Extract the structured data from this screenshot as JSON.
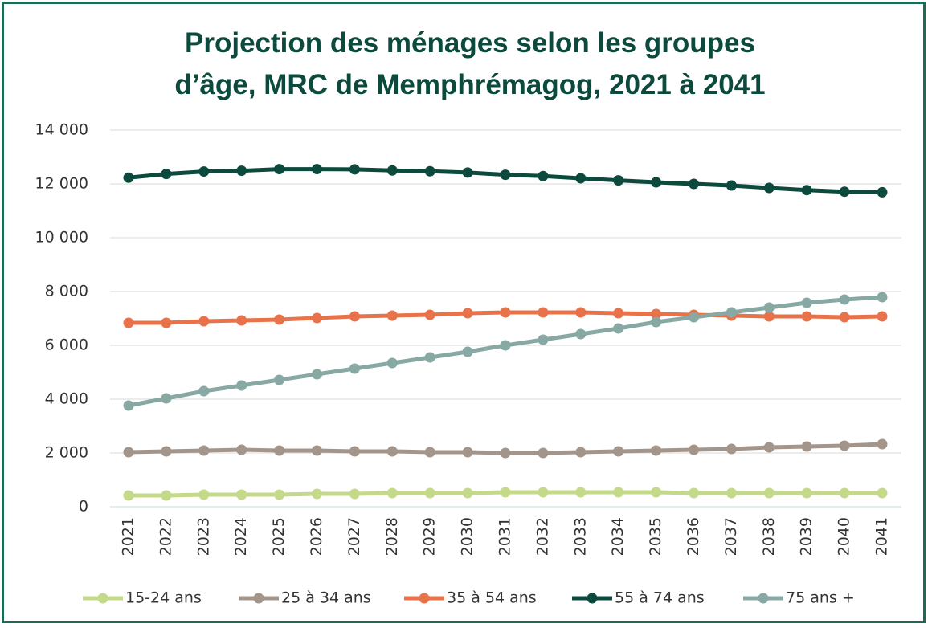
{
  "chart_data": {
    "type": "line",
    "title": "Projection des ménages selon les groupes d’âge, MRC de Memphrémagog, 2021 à 2041",
    "categories": [
      "2021",
      "2022",
      "2023",
      "2024",
      "2025",
      "2026",
      "2027",
      "2028",
      "2029",
      "2030",
      "2031",
      "2032",
      "2033",
      "2034",
      "2035",
      "2036",
      "2037",
      "2038",
      "2039",
      "2040",
      "2041"
    ],
    "series": [
      {
        "name": "15-24 ans",
        "color": "#c5d98a",
        "values": [
          418,
          418,
          448,
          448,
          448,
          478,
          478,
          507,
          507,
          507,
          537,
          537,
          537,
          537,
          537,
          507,
          507,
          507,
          507,
          507,
          507
        ]
      },
      {
        "name": "25 à 34 ans",
        "color": "#a4958a",
        "values": [
          2030,
          2060,
          2090,
          2119,
          2090,
          2090,
          2060,
          2060,
          2030,
          2030,
          2000,
          2000,
          2030,
          2060,
          2090,
          2119,
          2149,
          2209,
          2239,
          2269,
          2328
        ]
      },
      {
        "name": "35 à 54 ans",
        "color": "#e8734a",
        "values": [
          6836,
          6836,
          6896,
          6925,
          6955,
          7015,
          7075,
          7105,
          7134,
          7194,
          7224,
          7224,
          7224,
          7194,
          7164,
          7134,
          7105,
          7075,
          7075,
          7045,
          7075
        ]
      },
      {
        "name": "55 à 74 ans",
        "color": "#0b4a3c",
        "values": [
          12230,
          12370,
          12460,
          12490,
          12550,
          12550,
          12540,
          12500,
          12470,
          12420,
          12340,
          12290,
          12210,
          12130,
          12060,
          12000,
          11940,
          11850,
          11770,
          11710,
          11690
        ]
      },
      {
        "name": "75 ans +",
        "color": "#87a8a3",
        "values": [
          3761,
          4030,
          4299,
          4507,
          4716,
          4925,
          5134,
          5343,
          5552,
          5761,
          6000,
          6209,
          6418,
          6627,
          6866,
          7045,
          7224,
          7403,
          7582,
          7701,
          7791
        ]
      }
    ],
    "ylim": [
      0,
      14000
    ],
    "yticks": [
      0,
      {
        "value": 2000,
        "label": "2 000"
      },
      {
        "value": 4000,
        "label": "4 000"
      },
      {
        "value": 6000,
        "label": "6 000"
      },
      {
        "value": 8000,
        "label": "8 000"
      },
      {
        "value": 10000,
        "label": "10 000"
      },
      {
        "value": 12000,
        "label": "12 000"
      },
      {
        "value": 14000,
        "label": "14 000"
      }
    ],
    "grid": true,
    "legend": "bottom"
  }
}
